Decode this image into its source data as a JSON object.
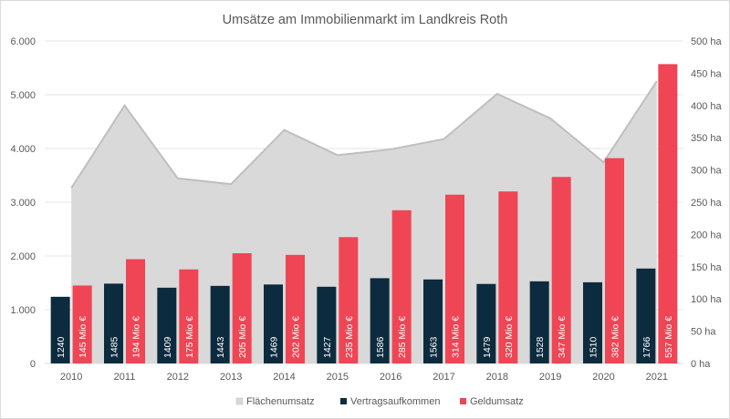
{
  "chart_data": {
    "type": "bar",
    "title": "Umsätze am Immobilienmarkt  im Landkreis Roth",
    "categories": [
      "2010",
      "2011",
      "2012",
      "2013",
      "2014",
      "2015",
      "2016",
      "2017",
      "2018",
      "2019",
      "2020",
      "2021"
    ],
    "y_left": {
      "ylim": [
        0,
        6000
      ],
      "ticks": [
        0,
        1000,
        2000,
        3000,
        4000,
        5000,
        6000
      ],
      "tick_labels": [
        "0",
        "1.000",
        "2.000",
        "3.000",
        "4.000",
        "5.000",
        "6.000"
      ]
    },
    "y_right": {
      "ylim": [
        0,
        500
      ],
      "ticks": [
        0,
        50,
        100,
        150,
        200,
        250,
        300,
        350,
        400,
        450,
        500
      ],
      "tick_labels": [
        "0 ha",
        "50 ha",
        "100 ha",
        "150 ha",
        "200 ha",
        "250 ha",
        "300 ha",
        "350 ha",
        "400 ha",
        "450 ha",
        "500 ha"
      ]
    },
    "series": [
      {
        "name": "Flächenumsatz",
        "type": "area",
        "axis": "right",
        "color": "#d9d9d9",
        "line_color": "#bfbfbf",
        "values": [
          272,
          400,
          287,
          278,
          362,
          323,
          332,
          348,
          418,
          380,
          312,
          438
        ]
      },
      {
        "name": "Vertragsaufkommen",
        "type": "bar",
        "axis": "left",
        "color": "#0d2b3e",
        "values": [
          1240,
          1485,
          1409,
          1443,
          1469,
          1427,
          1586,
          1563,
          1479,
          1528,
          1510,
          1766
        ],
        "labels": [
          "1240",
          "1485",
          "1409",
          "1443",
          "1469",
          "1427",
          "1586",
          "1563",
          "1479",
          "1528",
          "1510",
          "1766"
        ]
      },
      {
        "name": "Geldumsatz",
        "type": "bar",
        "axis": "left",
        "color": "#ef4555",
        "values": [
          1450,
          1940,
          1750,
          2050,
          2020,
          2350,
          2850,
          3140,
          3200,
          3470,
          3820,
          5570
        ],
        "labels": [
          "145 Mio €",
          "194 Mio €",
          "175 Mio €",
          "205 Mio €",
          "202 Mio €",
          "235 Mio €",
          "285 Mio €",
          "314 Mio €",
          "320 Mio €",
          "347 Mio €",
          "382 Mio €",
          "557 Mio €"
        ]
      }
    ],
    "grid": true,
    "legend": "bottom"
  }
}
